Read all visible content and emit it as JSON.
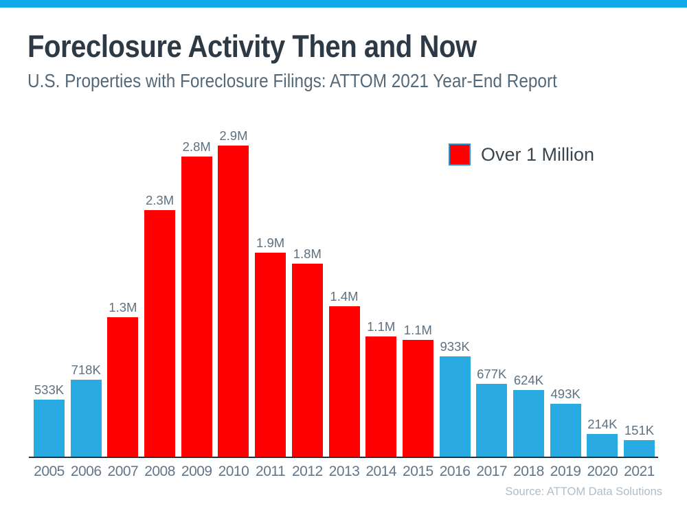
{
  "page": {
    "top_bar_color": "#12A9EA",
    "background": "#ffffff"
  },
  "header": {
    "title": "Foreclosure Activity Then and Now",
    "subtitle": "U.S. Properties with Foreclosure Filings: ATTOM 2021 Year-End Report"
  },
  "chart_data": {
    "type": "bar",
    "title": "Foreclosure Activity Then and Now",
    "subtitle": "U.S. Properties with Foreclosure Filings: ATTOM 2021 Year-End Report",
    "categories": [
      "2005",
      "2006",
      "2007",
      "2008",
      "2009",
      "2010",
      "2011",
      "2012",
      "2013",
      "2014",
      "2015",
      "2016",
      "2017",
      "2018",
      "2019",
      "2020",
      "2021"
    ],
    "values": [
      533000,
      718000,
      1300000,
      2300000,
      2800000,
      2900000,
      1900000,
      1800000,
      1400000,
      1120000,
      1090000,
      933000,
      677000,
      624000,
      493000,
      214000,
      151000
    ],
    "value_labels": [
      "533K",
      "718K",
      "1.3M",
      "2.3M",
      "2.8M",
      "2.9M",
      "1.9M",
      "1.8M",
      "1.4M",
      "1.1M",
      "1.1M",
      "933K",
      "677K",
      "624K",
      "493K",
      "214K",
      "151K"
    ],
    "ylim": [
      0,
      2900000
    ],
    "grid": false,
    "y_axis_shown": false,
    "legend_position": "top-right",
    "legend": [
      {
        "label": "Over 1 Million",
        "color": "#FF0000"
      }
    ],
    "color_rule": {
      "threshold": 1000000,
      "at_or_above_color": "#FF0000",
      "below_color": "#29ABE2"
    },
    "source": "Source: ATTOM Data Solutions"
  },
  "colors": {
    "red_bar": "#FF0000",
    "blue_bar": "#29ABE2",
    "axis_line": "#26323A",
    "title_text": "#2D3A45",
    "subtitle_text": "#53697A",
    "value_label_text": "#5E7180",
    "year_label_text": "#62768A",
    "source_text": "#AFBEC8",
    "legend_swatch_border": "#2491D0"
  }
}
